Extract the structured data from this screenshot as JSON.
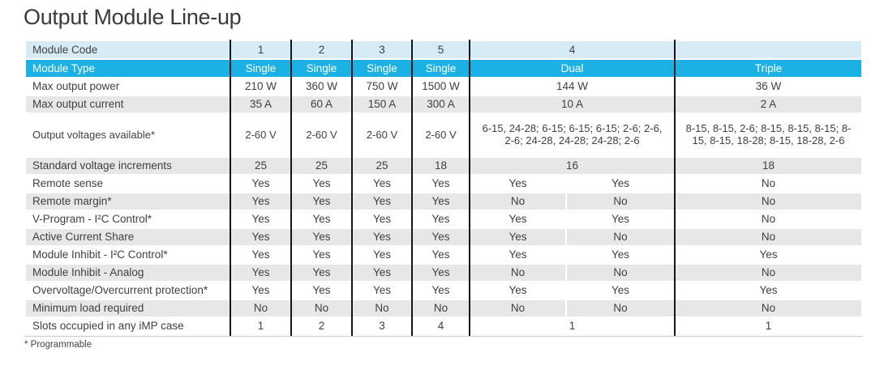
{
  "title": "Output Module Line-up",
  "footnote": "* Programmable",
  "colors": {
    "header_cyan": "#1cb1e5",
    "header_lightblue": "#d7ebf7",
    "row_gray": "#e7e7e7",
    "divider_black": "#161616",
    "bottom_rule_gray": "#c9c9c9"
  },
  "table": {
    "rows": [
      {
        "label": "Module Code",
        "shade": "lb",
        "cells": [
          {
            "t": "1"
          },
          {
            "t": "2"
          },
          {
            "t": "3"
          },
          {
            "t": "5"
          },
          {
            "t": "4",
            "span": 2
          },
          {
            "t": ""
          }
        ]
      },
      {
        "label": "Module Type",
        "shade": "cy",
        "cells": [
          {
            "t": "Single"
          },
          {
            "t": "Single"
          },
          {
            "t": "Single"
          },
          {
            "t": "Single"
          },
          {
            "t": "Dual",
            "span": 2
          },
          {
            "t": "Triple"
          }
        ]
      },
      {
        "label": "Max output power",
        "shade": "wh",
        "cells": [
          {
            "t": "210 W"
          },
          {
            "t": "360 W"
          },
          {
            "t": "750 W"
          },
          {
            "t": "1500 W"
          },
          {
            "t": "144 W",
            "span": 2
          },
          {
            "t": "36 W"
          }
        ]
      },
      {
        "label": "Max output current",
        "shade": "gy",
        "cells": [
          {
            "t": "35 A"
          },
          {
            "t": "60 A"
          },
          {
            "t": "150 A"
          },
          {
            "t": "300 A"
          },
          {
            "t": "10 A",
            "span": 2
          },
          {
            "t": "2 A"
          }
        ]
      },
      {
        "label": "Output voltages available*",
        "shade": "wh",
        "tall": true,
        "cells": [
          {
            "t": "2-60 V"
          },
          {
            "t": "2-60 V"
          },
          {
            "t": "2-60 V"
          },
          {
            "t": "2-60 V"
          },
          {
            "t": "6-15, 24-28; 6-15; 6-15; 6-15; 2-6; 2-6, 2-6; 24-28, 24-28; 24-28; 2-6",
            "span": 2
          },
          {
            "t": "8-15, 8-15, 2-6; 8-15, 8-15, 8-15; 8-15, 8-15, 18-28; 8-15, 18-28, 2-6"
          }
        ]
      },
      {
        "label": "Standard voltage increments",
        "shade": "gy",
        "cells": [
          {
            "t": "25"
          },
          {
            "t": "25"
          },
          {
            "t": "25"
          },
          {
            "t": "18"
          },
          {
            "t": "16",
            "span": 2
          },
          {
            "t": "18"
          }
        ]
      },
      {
        "label": "Remote sense",
        "shade": "wh",
        "cells": [
          {
            "t": "Yes"
          },
          {
            "t": "Yes"
          },
          {
            "t": "Yes"
          },
          {
            "t": "Yes"
          },
          {
            "t": "Yes"
          },
          {
            "t": "Yes"
          },
          {
            "t": "No"
          }
        ]
      },
      {
        "label": "Remote margin*",
        "shade": "gy",
        "cells": [
          {
            "t": "Yes"
          },
          {
            "t": "Yes"
          },
          {
            "t": "Yes"
          },
          {
            "t": "Yes"
          },
          {
            "t": "No"
          },
          {
            "t": "No"
          },
          {
            "t": "No"
          }
        ]
      },
      {
        "label": "V-Program - I²C Control*",
        "shade": "wh",
        "cells": [
          {
            "t": "Yes"
          },
          {
            "t": "Yes"
          },
          {
            "t": "Yes"
          },
          {
            "t": "Yes"
          },
          {
            "t": "Yes"
          },
          {
            "t": "Yes"
          },
          {
            "t": "No"
          }
        ]
      },
      {
        "label": "Active Current Share",
        "shade": "gy",
        "cells": [
          {
            "t": "Yes"
          },
          {
            "t": "Yes"
          },
          {
            "t": "Yes"
          },
          {
            "t": "Yes"
          },
          {
            "t": "Yes"
          },
          {
            "t": "No"
          },
          {
            "t": "No"
          }
        ]
      },
      {
        "label": "Module Inhibit - I²C Control*",
        "shade": "wh",
        "cells": [
          {
            "t": "Yes"
          },
          {
            "t": "Yes"
          },
          {
            "t": "Yes"
          },
          {
            "t": "Yes"
          },
          {
            "t": "Yes"
          },
          {
            "t": "Yes"
          },
          {
            "t": "Yes"
          }
        ]
      },
      {
        "label": "Module Inhibit - Analog",
        "shade": "gy",
        "cells": [
          {
            "t": "Yes"
          },
          {
            "t": "Yes"
          },
          {
            "t": "Yes"
          },
          {
            "t": "Yes"
          },
          {
            "t": "No"
          },
          {
            "t": "No"
          },
          {
            "t": "No"
          }
        ]
      },
      {
        "label": "Overvoltage/Overcurrent protection*",
        "shade": "wh",
        "cells": [
          {
            "t": "Yes"
          },
          {
            "t": "Yes"
          },
          {
            "t": "Yes"
          },
          {
            "t": "Yes"
          },
          {
            "t": "Yes"
          },
          {
            "t": "Yes"
          },
          {
            "t": "Yes"
          }
        ]
      },
      {
        "label": "Minimum load required",
        "shade": "gy",
        "cells": [
          {
            "t": "No"
          },
          {
            "t": "No"
          },
          {
            "t": "No"
          },
          {
            "t": "No"
          },
          {
            "t": "No"
          },
          {
            "t": "No"
          },
          {
            "t": "No"
          }
        ]
      },
      {
        "label": "Slots occupied in any iMP case",
        "shade": "wh",
        "cells": [
          {
            "t": "1"
          },
          {
            "t": "2"
          },
          {
            "t": "3"
          },
          {
            "t": "4"
          },
          {
            "t": "1",
            "span": 2
          },
          {
            "t": "1"
          }
        ]
      }
    ]
  }
}
